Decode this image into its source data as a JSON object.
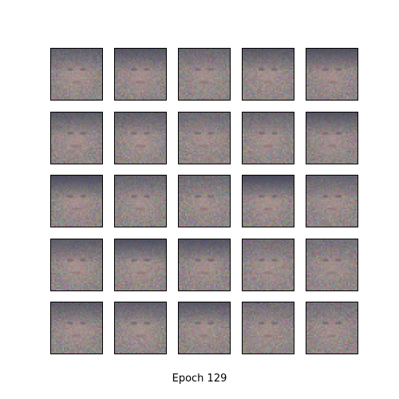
{
  "figure": {
    "caption": "Epoch 129",
    "grid_rows": 5,
    "grid_cols": 5,
    "colors": {
      "background": "#ffffff",
      "tile_border": "#000000",
      "skin_tone": "#b89a94",
      "hair_tone": "#3a3d52",
      "noise_base": "#8c8582"
    },
    "samples": [
      {
        "hair": 0.55,
        "face": 0.6
      },
      {
        "hair": 0.7,
        "face": 0.55
      },
      {
        "hair": 0.45,
        "face": 0.5
      },
      {
        "hair": 0.65,
        "face": 0.55
      },
      {
        "hair": 0.75,
        "face": 0.5
      },
      {
        "hair": 0.6,
        "face": 0.55
      },
      {
        "hair": 0.55,
        "face": 0.6
      },
      {
        "hair": 0.4,
        "face": 0.5
      },
      {
        "hair": 0.45,
        "face": 0.55
      },
      {
        "hair": 0.7,
        "face": 0.5
      },
      {
        "hair": 0.8,
        "face": 0.6
      },
      {
        "hair": 0.5,
        "face": 0.55
      },
      {
        "hair": 0.4,
        "face": 0.5
      },
      {
        "hair": 0.85,
        "face": 0.6
      },
      {
        "hair": 0.5,
        "face": 0.5
      },
      {
        "hair": 0.6,
        "face": 0.6
      },
      {
        "hair": 0.75,
        "face": 0.55
      },
      {
        "hair": 0.7,
        "face": 0.5
      },
      {
        "hair": 0.35,
        "face": 0.55
      },
      {
        "hair": 0.3,
        "face": 0.5
      },
      {
        "hair": 0.6,
        "face": 0.55
      },
      {
        "hair": 0.55,
        "face": 0.6
      },
      {
        "hair": 0.65,
        "face": 0.55
      },
      {
        "hair": 0.35,
        "face": 0.5
      },
      {
        "hair": 0.3,
        "face": 0.5
      }
    ]
  }
}
